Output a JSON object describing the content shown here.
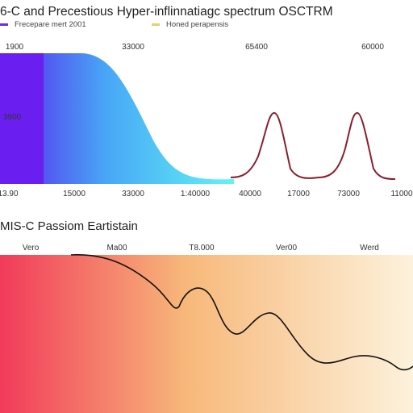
{
  "chart_data": [
    {
      "type": "line",
      "title": "6-C and Precestious Hyper-inflinnatiagc spectrum OSCTRM",
      "legend": [
        {
          "label": "Frecepare mert 2001",
          "color": "#6a2de0"
        },
        {
          "label": "Honed perapensis",
          "color": "#e8d06b"
        }
      ],
      "top_ticks": [
        "1900",
        "33000",
        "65400",
        "60000"
      ],
      "bottom_ticks": [
        "13.90",
        "15000",
        "33000",
        "1:40000",
        "40000",
        "17000",
        "73000",
        "11000"
      ],
      "y_label_left": "3900",
      "series": [
        {
          "name": "",
          "x": [
            0,
            0.1,
            0.2,
            0.3,
            0.4,
            0.45,
            0.5,
            0.55
          ],
          "values": [
            1,
            1,
            0.98,
            0.9,
            0.6,
            0.3,
            0.08,
            0.05
          ]
        },
        {
          "name": "",
          "x": [
            0.55,
            0.6,
            0.66,
            0.72,
            0.78,
            0.86,
            0.94,
            1.0
          ],
          "values": [
            0.05,
            0.1,
            0.85,
            0.1,
            0.12,
            0.85,
            0.1,
            0.05
          ]
        }
      ],
      "colors": {
        "gradient_start": "#6a22f0",
        "gradient_mid": "#4aa8f6",
        "gradient_end": "#5ef2f5",
        "block": "#6a1ff0",
        "peaks": "#8b1e2e"
      }
    },
    {
      "type": "area",
      "title": "MIS-C Passiom Eartistain",
      "top_ticks": [
        "Vero",
        "Ma00",
        "T8.000",
        "Ver00",
        "Werd"
      ],
      "series": [
        {
          "name": "",
          "x": [
            0.17,
            0.25,
            0.33,
            0.4,
            0.46,
            0.55,
            0.65,
            0.75,
            0.85,
            0.93,
            1.0
          ],
          "values": [
            1.0,
            0.97,
            0.86,
            0.65,
            0.8,
            0.45,
            0.55,
            0.22,
            0.3,
            0.22,
            0.0
          ]
        }
      ],
      "colors": {
        "gradient_start": "#f23a5a",
        "gradient_mid": "#f7b87a",
        "gradient_end": "#fdf2dc",
        "line": "#111111"
      }
    }
  ]
}
